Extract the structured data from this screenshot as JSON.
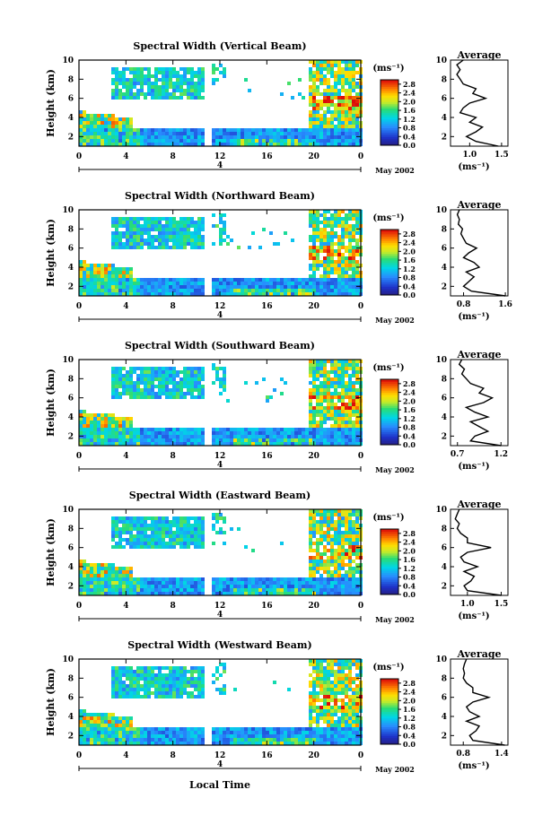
{
  "figure": {
    "month_label": "May 2002",
    "x_axis_label": "Local Time",
    "date_marker": "4",
    "unit_label": "(ms⁻¹)",
    "average_title": "Average",
    "ylabel": "Height (km)"
  },
  "chart_data": [
    {
      "type": "heatmap",
      "title": "Spectral Width (Vertical Beam)",
      "xlabel": "",
      "ylabel": "Height (km)",
      "x_ticks": [
        "0",
        "4",
        "8",
        "12",
        "16",
        "20",
        "0"
      ],
      "y_ticks": [
        "2",
        "4",
        "6",
        "8",
        "10"
      ],
      "xlim_hours": [
        0,
        24
      ],
      "ylim_km": [
        1,
        10
      ],
      "colorbar": {
        "label": "(ms⁻¹)",
        "ticks": [
          "0.0",
          "0.4",
          "0.8",
          "1.2",
          "1.6",
          "2.0",
          "2.4",
          "2.8"
        ],
        "range": [
          0,
          3.0
        ]
      },
      "average_profile": {
        "title": "Average",
        "xlabel": "(ms⁻¹)",
        "x_ticks": [
          "1.0",
          "1.5"
        ],
        "xlim": [
          0.7,
          1.6
        ],
        "height_km": [
          1,
          1.5,
          2,
          2.5,
          3,
          3.5,
          4,
          4.5,
          5,
          5.5,
          6,
          6.5,
          7,
          7.5,
          8,
          8.5,
          9,
          9.5,
          10
        ],
        "values": [
          1.45,
          1.1,
          0.95,
          1.1,
          1.2,
          1.0,
          1.1,
          0.85,
          0.9,
          1.0,
          1.25,
          1.05,
          1.1,
          0.9,
          0.85,
          0.8,
          0.85,
          0.8,
          0.9
        ]
      }
    },
    {
      "type": "heatmap",
      "title": "Spectral Width (Northward Beam)",
      "xlabel": "",
      "ylabel": "Height (km)",
      "x_ticks": [
        "0",
        "4",
        "8",
        "12",
        "16",
        "20",
        "0"
      ],
      "y_ticks": [
        "2",
        "4",
        "6",
        "8",
        "10"
      ],
      "xlim_hours": [
        0,
        24
      ],
      "ylim_km": [
        1,
        10
      ],
      "colorbar": {
        "label": "(ms⁻¹)",
        "ticks": [
          "0.0",
          "0.4",
          "0.8",
          "1.2",
          "1.6",
          "2.0",
          "2.4",
          "2.8"
        ],
        "range": [
          0,
          3.0
        ]
      },
      "average_profile": {
        "title": "Average",
        "xlabel": "(ms⁻¹)",
        "x_ticks": [
          "0.8",
          "1.6"
        ],
        "xlim": [
          0.55,
          1.65
        ],
        "height_km": [
          1,
          1.5,
          2,
          2.5,
          3,
          3.5,
          4,
          4.5,
          5,
          5.5,
          6,
          6.5,
          7,
          7.5,
          8,
          8.5,
          9,
          9.5,
          10
        ],
        "values": [
          1.6,
          0.95,
          0.8,
          0.9,
          1.0,
          0.85,
          1.1,
          1.0,
          0.8,
          0.9,
          1.05,
          0.85,
          0.8,
          0.75,
          0.78,
          0.7,
          0.72,
          0.68,
          0.72
        ]
      }
    },
    {
      "type": "heatmap",
      "title": "Spectral Width (Southward Beam)",
      "xlabel": "",
      "ylabel": "Height (km)",
      "x_ticks": [
        "0",
        "4",
        "8",
        "12",
        "16",
        "20",
        "0"
      ],
      "y_ticks": [
        "2",
        "4",
        "6",
        "8",
        "10"
      ],
      "xlim_hours": [
        0,
        24
      ],
      "ylim_km": [
        1,
        10
      ],
      "colorbar": {
        "label": "(ms⁻¹)",
        "ticks": [
          "0.0",
          "0.4",
          "0.8",
          "1.2",
          "1.6",
          "2.0",
          "2.4",
          "2.8"
        ],
        "range": [
          0,
          3.0
        ]
      },
      "average_profile": {
        "title": "Average",
        "xlabel": "(ms⁻¹)",
        "x_ticks": [
          "0.7",
          "1.2"
        ],
        "xlim": [
          0.62,
          1.28
        ],
        "height_km": [
          1,
          1.5,
          2,
          2.5,
          3,
          3.5,
          4,
          4.5,
          5,
          5.5,
          6,
          6.5,
          7,
          7.5,
          8,
          8.5,
          9,
          9.5,
          10
        ],
        "values": [
          1.2,
          0.85,
          0.9,
          1.05,
          0.95,
          0.85,
          1.05,
          0.9,
          0.8,
          1.0,
          1.1,
          0.95,
          1.0,
          0.85,
          0.8,
          0.75,
          0.78,
          0.72,
          0.75
        ]
      }
    },
    {
      "type": "heatmap",
      "title": "Spectral Width (Eastward Beam)",
      "xlabel": "",
      "ylabel": "Height (km)",
      "x_ticks": [
        "0",
        "4",
        "8",
        "12",
        "16",
        "20",
        "0"
      ],
      "y_ticks": [
        "2",
        "4",
        "6",
        "8",
        "10"
      ],
      "xlim_hours": [
        0,
        24
      ],
      "ylim_km": [
        1,
        10
      ],
      "colorbar": {
        "label": "(ms⁻¹)",
        "ticks": [
          "0.0",
          "0.4",
          "0.8",
          "1.2",
          "1.6",
          "2.0",
          "2.4",
          "2.8"
        ],
        "range": [
          0,
          3.0
        ]
      },
      "average_profile": {
        "title": "Average",
        "xlabel": "(ms⁻¹)",
        "x_ticks": [
          "1.0",
          "1.5"
        ],
        "xlim": [
          0.75,
          1.6
        ],
        "height_km": [
          1,
          1.5,
          2,
          2.5,
          3,
          3.5,
          4,
          4.5,
          5,
          5.5,
          6,
          6.5,
          7,
          7.5,
          8,
          8.5,
          9,
          9.5,
          10
        ],
        "values": [
          1.5,
          1.0,
          0.95,
          1.05,
          1.1,
          0.95,
          1.15,
          0.95,
          0.9,
          1.0,
          1.35,
          1.0,
          1.0,
          0.9,
          0.85,
          0.88,
          0.82,
          0.85,
          0.88
        ]
      }
    },
    {
      "type": "heatmap",
      "title": "Spectral Width (Westward Beam)",
      "xlabel": "Local Time",
      "ylabel": "Height (km)",
      "x_ticks": [
        "0",
        "4",
        "8",
        "12",
        "16",
        "20",
        "0"
      ],
      "y_ticks": [
        "2",
        "4",
        "6",
        "8",
        "10"
      ],
      "xlim_hours": [
        0,
        24
      ],
      "ylim_km": [
        1,
        10
      ],
      "colorbar": {
        "label": "(ms⁻¹)",
        "ticks": [
          "0.0",
          "0.4",
          "0.8",
          "1.2",
          "1.6",
          "2.0",
          "2.4",
          "2.8"
        ],
        "range": [
          0,
          3.0
        ]
      },
      "average_profile": {
        "title": "Average",
        "xlabel": "(ms⁻¹)",
        "x_ticks": [
          "0.8",
          "1.4"
        ],
        "xlim": [
          0.6,
          1.5
        ],
        "height_km": [
          1,
          1.5,
          2,
          2.5,
          3,
          3.5,
          4,
          4.5,
          5,
          5.5,
          6,
          6.5,
          7,
          7.5,
          8,
          8.5,
          9,
          9.5,
          10
        ],
        "values": [
          1.45,
          0.95,
          0.9,
          1.0,
          1.05,
          0.85,
          1.05,
          0.9,
          0.85,
          0.95,
          1.2,
          0.95,
          0.95,
          0.85,
          0.8,
          0.82,
          0.8,
          0.82,
          0.85
        ]
      }
    }
  ]
}
